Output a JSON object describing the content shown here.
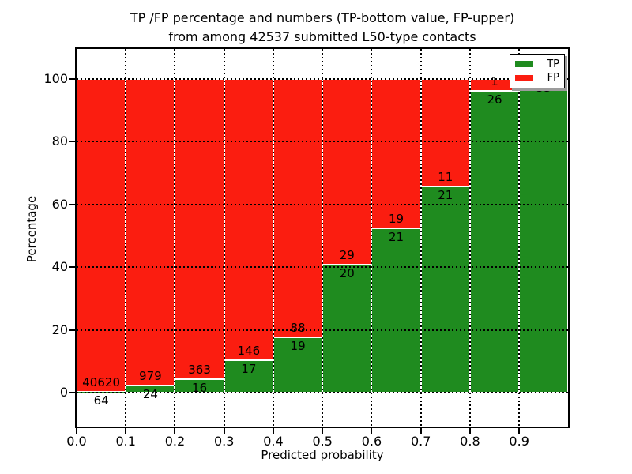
{
  "figure": {
    "title_line1": "TP /FP percentage and numbers (TP-bottom value, FP-upper)",
    "title_line2": "from among 42537 submitted L50-type contacts",
    "xlabel": "Predicted probability",
    "ylabel": "Percentage"
  },
  "legend": {
    "items": [
      {
        "label": "TP",
        "color": "#1f8b1f"
      },
      {
        "label": "FP",
        "color": "#fb1d10"
      }
    ]
  },
  "colors": {
    "tp_green": "#1f8b1f",
    "fp_red": "#fb1d10",
    "grid": "#000000",
    "background": "#ffffff"
  },
  "chart_data": {
    "type": "bar",
    "stacked": true,
    "normalized": "percent",
    "title": "TP /FP percentage and numbers (TP-bottom value, FP-upper) from among 42537 submitted L50-type contacts",
    "xlabel": "Predicted probability",
    "ylabel": "Percentage",
    "total_submitted": 42537,
    "x_ticks": [
      "0.0",
      "0.1",
      "0.2",
      "0.3",
      "0.4",
      "0.5",
      "0.6",
      "0.7",
      "0.8",
      "0.9"
    ],
    "y_ticks": [
      0,
      20,
      40,
      60,
      80,
      100
    ],
    "xlim": [
      0.0,
      1.0
    ],
    "bin_width": 0.1,
    "grid": "dotted",
    "legend_position": "upper right",
    "categories": [
      "0.0-0.1",
      "0.1-0.2",
      "0.2-0.3",
      "0.3-0.4",
      "0.4-0.5",
      "0.5-0.6",
      "0.6-0.7",
      "0.7-0.8",
      "0.8-0.9",
      "0.9-1.0"
    ],
    "series": [
      {
        "name": "TP",
        "color": "#1f8b1f",
        "counts": [
          64,
          24,
          16,
          17,
          19,
          20,
          21,
          21,
          26,
          53
        ]
      },
      {
        "name": "FP",
        "color": "#fb1d10",
        "counts": [
          40620,
          979,
          363,
          146,
          88,
          29,
          19,
          11,
          1,
          0
        ]
      }
    ],
    "tp_percent": [
      0.16,
      2.39,
      4.22,
      10.43,
      17.76,
      40.82,
      52.5,
      65.63,
      96.3,
      100.0
    ],
    "bars": [
      {
        "range": "0.0-0.1",
        "tp": 64,
        "fp": 40620
      },
      {
        "range": "0.1-0.2",
        "tp": 24,
        "fp": 979
      },
      {
        "range": "0.2-0.3",
        "tp": 16,
        "fp": 363
      },
      {
        "range": "0.3-0.4",
        "tp": 17,
        "fp": 146
      },
      {
        "range": "0.4-0.5",
        "tp": 19,
        "fp": 88
      },
      {
        "range": "0.5-0.6",
        "tp": 20,
        "fp": 29
      },
      {
        "range": "0.6-0.7",
        "tp": 21,
        "fp": 19
      },
      {
        "range": "0.7-0.8",
        "tp": 21,
        "fp": 11
      },
      {
        "range": "0.8-0.9",
        "tp": 26,
        "fp": 1
      },
      {
        "range": "0.9-1.0",
        "tp": 53,
        "fp": 0
      }
    ]
  }
}
